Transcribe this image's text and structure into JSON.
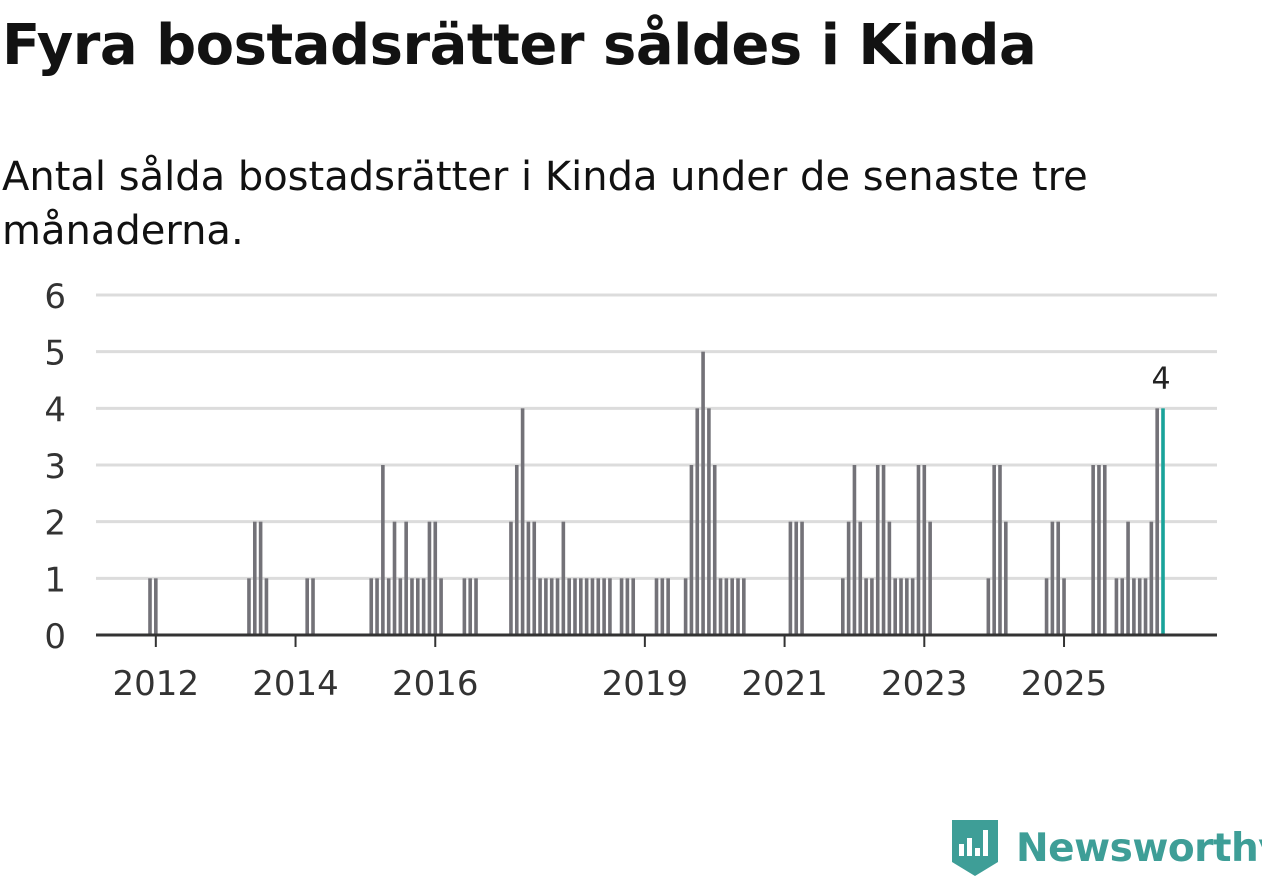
{
  "title": "Fyra bostadsrätter såldes i Kinda",
  "subtitle": "Antal sålda bostadsrätter i Kinda under de senaste tre månaderna.",
  "logo_text": "Newsworthy",
  "colors": {
    "bar": "#737278",
    "highlight": "#1aa39a",
    "grid": "#dcdcdc",
    "axis": "#333333",
    "logo": "#3e9e97"
  },
  "chart_data": {
    "type": "bar",
    "title": "Fyra bostadsrätter såldes i Kinda",
    "xlabel": "",
    "ylabel": "",
    "ylim": [
      0,
      6
    ],
    "yticks": [
      0,
      1,
      2,
      3,
      4,
      5,
      6
    ],
    "x_start": "2011-12",
    "x_end": "2025-09",
    "xticks": [
      "2012",
      "2014",
      "2016",
      "2019",
      "2021",
      "2023",
      "2025"
    ],
    "highlight_label": "4",
    "series": [
      {
        "name": "Antal sålda bostadsrätter",
        "values": [
          1,
          1,
          0,
          0,
          0,
          0,
          0,
          0,
          0,
          0,
          0,
          0,
          0,
          0,
          0,
          0,
          0,
          1,
          2,
          2,
          1,
          0,
          0,
          0,
          0,
          0,
          0,
          1,
          1,
          0,
          0,
          0,
          0,
          0,
          0,
          0,
          0,
          0,
          1,
          1,
          3,
          1,
          2,
          1,
          2,
          1,
          1,
          1,
          2,
          2,
          1,
          0,
          0,
          0,
          1,
          1,
          1,
          0,
          0,
          0,
          0,
          0,
          2,
          3,
          4,
          2,
          2,
          1,
          1,
          1,
          1,
          2,
          1,
          1,
          1,
          1,
          1,
          1,
          1,
          1,
          0,
          1,
          1,
          1,
          0,
          0,
          0,
          1,
          1,
          1,
          0,
          0,
          1,
          3,
          4,
          5,
          4,
          3,
          1,
          1,
          1,
          1,
          1,
          0,
          0,
          0,
          0,
          0,
          0,
          0,
          2,
          2,
          2,
          0,
          0,
          0,
          0,
          0,
          0,
          1,
          2,
          3,
          2,
          1,
          1,
          3,
          3,
          2,
          1,
          1,
          1,
          1,
          3,
          3,
          2,
          0,
          0,
          0,
          0,
          0,
          0,
          0,
          0,
          0,
          1,
          3,
          3,
          2,
          0,
          0,
          0,
          0,
          0,
          0,
          1,
          2,
          2,
          1,
          0,
          0,
          0,
          0,
          3,
          3,
          3,
          0,
          1,
          1,
          2,
          1,
          1,
          1,
          2,
          4,
          4
        ]
      }
    ]
  }
}
